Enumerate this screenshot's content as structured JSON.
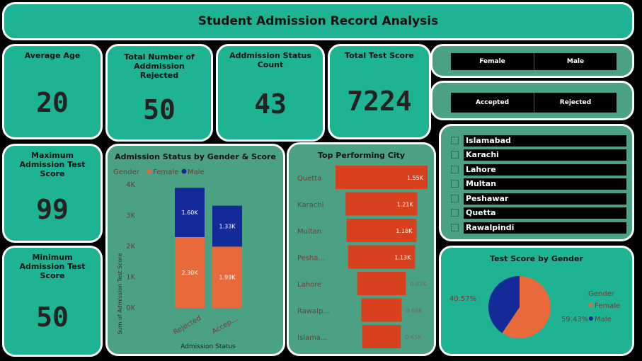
{
  "title": "Student Admission Record Analysis",
  "kpis": {
    "average_age": {
      "label": "Average Age",
      "value": "20"
    },
    "rejected": {
      "label": "Total Number of Addmission Rejected",
      "value": "50"
    },
    "status_count": {
      "label": "Addmission Status Count",
      "value": "43"
    },
    "total_score": {
      "label": "Total Test Score",
      "value": "7224"
    },
    "max_score": {
      "label": "Maximum Admission Test Score",
      "value": "99"
    },
    "min_score": {
      "label": "Minimum Admission Test Score",
      "value": "50"
    }
  },
  "gender_slicer": [
    "Female",
    "Male"
  ],
  "status_slicer": [
    "Accepted",
    "Rejected"
  ],
  "city_slicer": [
    "Islamabad",
    "Karachi",
    "Lahore",
    "Multan",
    "Peshawar",
    "Quetta",
    "Rawalpindi"
  ],
  "colors": {
    "female": "#e8693a",
    "male": "#142a99",
    "city_bar": "#d9411e",
    "bg": "#1db393",
    "panel": "#4aa184"
  },
  "chart_data": [
    {
      "type": "bar",
      "title": "Admission Status by Gender & Score",
      "legend_title": "Gender",
      "legend_position": "top-left",
      "categories": [
        "Rejected",
        "Accep..."
      ],
      "series": [
        {
          "name": "Female",
          "values": [
            2300,
            1990
          ],
          "labels": [
            "2.30K",
            "1.99K"
          ]
        },
        {
          "name": "Male",
          "values": [
            1600,
            1330
          ],
          "labels": [
            "1.60K",
            "1.33K"
          ]
        }
      ],
      "xlabel": "Admission Status",
      "ylabel": "Sum of Admission Test Score",
      "ylim": [
        0,
        4000
      ],
      "yticks": [
        "0K",
        "1K",
        "2K",
        "3K",
        "4K"
      ]
    },
    {
      "type": "bar",
      "title": "Top Performing City",
      "categories": [
        "Quetta",
        "Karachi",
        "Multan",
        "Pesha...",
        "Lahore",
        "Rawalp...",
        "Islama..."
      ],
      "values": [
        1550,
        1210,
        1180,
        1130,
        820,
        680,
        650
      ],
      "labels": [
        "1.55K",
        "1.21K",
        "1.18K",
        "1.13K",
        "0.82K",
        "0.68K",
        "0.65K"
      ]
    },
    {
      "type": "pie",
      "title": "Test Score by Gender",
      "legend_title": "Gender",
      "categories": [
        "Female",
        "Male"
      ],
      "values": [
        59.43,
        40.57
      ],
      "labels": [
        "59.43%",
        "40.57%"
      ]
    }
  ]
}
